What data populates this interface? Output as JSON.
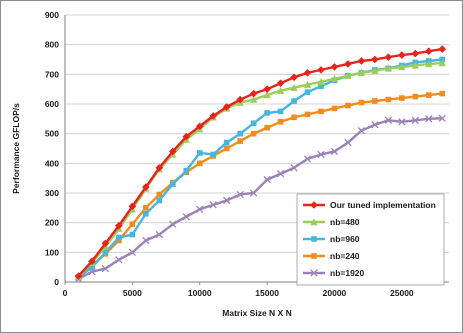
{
  "chart_data": {
    "type": "line",
    "title": "",
    "xlabel": "Matrix Size N X N",
    "ylabel": "Performance GFLOP/s",
    "xlim": [
      0,
      28500
    ],
    "ylim": [
      0,
      900
    ],
    "x_ticks": [
      0,
      5000,
      10000,
      15000,
      20000,
      25000
    ],
    "y_ticks": [
      0,
      100,
      200,
      300,
      400,
      500,
      600,
      700,
      800,
      900
    ],
    "grid": true,
    "legend_position": "bottom-right",
    "x": [
      1000,
      2000,
      3000,
      4000,
      5000,
      6000,
      7000,
      8000,
      9000,
      10000,
      11000,
      12000,
      13000,
      14000,
      15000,
      16000,
      17000,
      18000,
      19000,
      20000,
      21000,
      22000,
      23000,
      24000,
      25000,
      26000,
      27000,
      28000
    ],
    "series": [
      {
        "name": "Our tuned implementation",
        "color": "#e8231c",
        "marker": "diamond",
        "values": [
          20,
          70,
          130,
          190,
          255,
          320,
          385,
          440,
          490,
          525,
          560,
          590,
          615,
          635,
          650,
          670,
          690,
          705,
          715,
          725,
          735,
          745,
          750,
          758,
          765,
          770,
          778,
          785
        ]
      },
      {
        "name": "nb=480",
        "color": "#9acd5a",
        "marker": "triangle",
        "values": [
          18,
          65,
          120,
          180,
          245,
          315,
          380,
          430,
          480,
          515,
          555,
          585,
          605,
          615,
          630,
          645,
          655,
          665,
          675,
          685,
          695,
          705,
          712,
          720,
          725,
          730,
          735,
          738
        ]
      },
      {
        "name": "nb=960",
        "color": "#46b6dc",
        "marker": "square",
        "values": [
          15,
          50,
          100,
          150,
          160,
          230,
          275,
          330,
          375,
          435,
          430,
          470,
          500,
          535,
          570,
          575,
          610,
          640,
          660,
          680,
          695,
          705,
          715,
          720,
          730,
          740,
          745,
          750
        ]
      },
      {
        "name": "nb=240",
        "color": "#f28c1e",
        "marker": "square",
        "values": [
          15,
          55,
          95,
          140,
          195,
          250,
          295,
          335,
          370,
          400,
          425,
          450,
          475,
          500,
          520,
          540,
          555,
          565,
          575,
          585,
          595,
          605,
          610,
          615,
          620,
          625,
          630,
          635
        ]
      },
      {
        "name": "nb=1920",
        "color": "#9b82b8",
        "marker": "cross",
        "values": [
          10,
          35,
          45,
          75,
          100,
          140,
          160,
          195,
          220,
          245,
          260,
          275,
          295,
          300,
          345,
          365,
          385,
          415,
          430,
          440,
          470,
          510,
          530,
          545,
          540,
          545,
          550,
          552
        ]
      }
    ]
  }
}
